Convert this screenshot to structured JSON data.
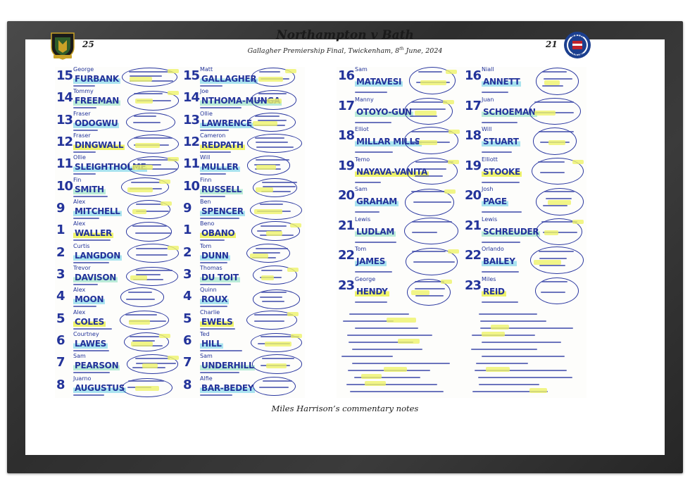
{
  "header": {
    "title": "Northampton v Bath",
    "subtitle_prefix": "Gallagher Premiership Final, Twickenham, 8",
    "subtitle_sup": "th",
    "subtitle_suffix": " June, 2024",
    "left_number": "25",
    "right_number": "21"
  },
  "caption": "Miles Harrison’s commentary notes",
  "crests": {
    "left": "northampton-crest-icon",
    "right": "bath-rugby-crest-icon"
  },
  "northampton": {
    "col_a": [
      {
        "num": "15",
        "name": "FURBANK",
        "first": "George"
      },
      {
        "num": "14",
        "name": "FREEMAN",
        "first": "Tommy"
      },
      {
        "num": "13",
        "name": "ODOGWU",
        "first": "Fraser"
      },
      {
        "num": "12",
        "name": "DINGWALL",
        "first": "Fraser"
      },
      {
        "num": "11",
        "name": "SLEIGHTHOLME",
        "first": "Ollie"
      },
      {
        "num": "10",
        "name": "SMITH",
        "first": "Fin"
      },
      {
        "num": "9",
        "name": "MITCHELL",
        "first": "Alex"
      },
      {
        "num": "1",
        "name": "WALLER",
        "first": "Alex"
      },
      {
        "num": "2",
        "name": "LANGDON",
        "first": "Curtis"
      },
      {
        "num": "3",
        "name": "DAVISON",
        "first": "Trevor"
      },
      {
        "num": "4",
        "name": "MOON",
        "first": "Alex"
      },
      {
        "num": "5",
        "name": "COLES",
        "first": "Alex"
      },
      {
        "num": "6",
        "name": "LAWES",
        "first": "Courtney"
      },
      {
        "num": "7",
        "name": "PEARSON",
        "first": "Sam"
      },
      {
        "num": "8",
        "name": "AUGUSTUS",
        "first": "Juarno"
      }
    ],
    "col_b": [
      {
        "num": "15",
        "name": "GALLAGHER",
        "first": "Matt"
      },
      {
        "num": "14",
        "name": "NTHOMA-MUNGA",
        "first": "Joe"
      },
      {
        "num": "13",
        "name": "LAWRENCE",
        "first": "Ollie"
      },
      {
        "num": "12",
        "name": "REDPATH",
        "first": "Cameron"
      },
      {
        "num": "11",
        "name": "MULLER",
        "first": "Will"
      },
      {
        "num": "10",
        "name": "RUSSELL",
        "first": "Finn"
      },
      {
        "num": "9",
        "name": "SPENCER",
        "first": "Ben"
      },
      {
        "num": "1",
        "name": "OBANO",
        "first": "Beno"
      },
      {
        "num": "2",
        "name": "DUNN",
        "first": "Tom"
      },
      {
        "num": "3",
        "name": "DU TOIT",
        "first": "Thomas"
      },
      {
        "num": "4",
        "name": "ROUX",
        "first": "Quinn"
      },
      {
        "num": "5",
        "name": "EWELS",
        "first": "Charlie"
      },
      {
        "num": "6",
        "name": "HILL",
        "first": "Ted"
      },
      {
        "num": "7",
        "name": "UNDERHILL",
        "first": "Sam"
      },
      {
        "num": "8",
        "name": "BAR-BEDEY",
        "first": "Alfie"
      }
    ]
  },
  "bath": {
    "col_a": [
      {
        "num": "16",
        "name": "MATAVESI",
        "first": "Sam"
      },
      {
        "num": "17",
        "name": "OTOYO-GUN",
        "first": "Manny"
      },
      {
        "num": "18",
        "name": "MILLAR MILLS",
        "first": "Elliot"
      },
      {
        "num": "19",
        "name": "NAYAVA-VANITA",
        "first": "Temo"
      },
      {
        "num": "20",
        "name": "GRAHAM",
        "first": "Sam"
      },
      {
        "num": "21",
        "name": "LUDLAM",
        "first": "Lewis"
      },
      {
        "num": "22",
        "name": "JAMES",
        "first": "Tom"
      },
      {
        "num": "23",
        "name": "HENDY",
        "first": "George"
      }
    ],
    "col_b": [
      {
        "num": "16",
        "name": "ANNETT",
        "first": "Niall"
      },
      {
        "num": "17",
        "name": "SCHOEMAN",
        "first": "Juan"
      },
      {
        "num": "18",
        "name": "STUART",
        "first": "Will"
      },
      {
        "num": "19",
        "name": "STOOKE",
        "first": "Elliott"
      },
      {
        "num": "20",
        "name": "PAGE",
        "first": "Josh"
      },
      {
        "num": "21",
        "name": "SCHREUDER",
        "first": "Lewis"
      },
      {
        "num": "22",
        "name": "BAILEY",
        "first": "Orlando"
      },
      {
        "num": "23",
        "name": "REID",
        "first": "Miles"
      }
    ]
  },
  "colors": {
    "ink": "#23339a",
    "highlight_yellow": "#eef36a",
    "highlight_blue": "#a9e3ef",
    "highlight_green": "#b9ebd8",
    "frame": "#333333"
  }
}
